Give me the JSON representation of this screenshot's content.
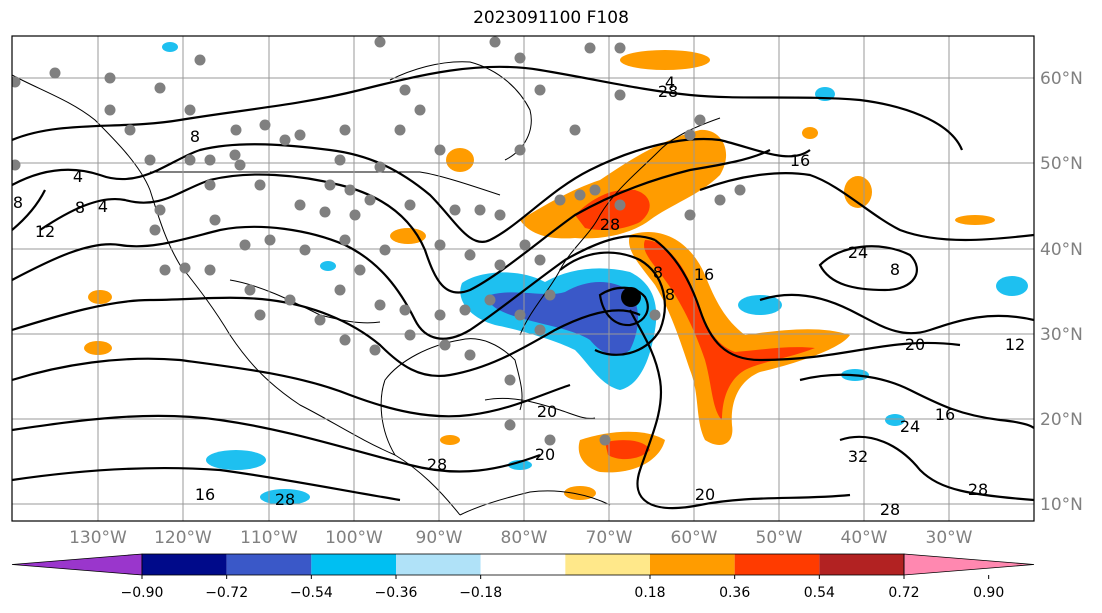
{
  "title": "2023091100 F108",
  "map": {
    "lon_labels": [
      "130°W",
      "120°W",
      "110°W",
      "100°W",
      "90°W",
      "80°W",
      "70°W",
      "60°W",
      "50°W",
      "40°W",
      "30°W"
    ],
    "lat_labels": [
      "60°N",
      "50°N",
      "40°N",
      "30°N",
      "20°N",
      "10°N"
    ],
    "contour_labels": [
      "8",
      "8",
      "4",
      "8",
      "12",
      "4",
      "16",
      "20",
      "24",
      "8",
      "16",
      "20",
      "16",
      "28",
      "28",
      "28",
      "12",
      "28",
      "20",
      "32",
      "24",
      "8",
      "8",
      "16",
      "28",
      "28",
      "4",
      "20"
    ],
    "colors": {
      "neg_strong": "#3a58c8",
      "neg_mid": "#1ec0f0",
      "neg_weak": "#b0e2f8",
      "pos_weak": "#ffe88a",
      "pos_mid": "#ff9c00",
      "pos_strong": "#ff3b00",
      "point": "#808080"
    }
  },
  "colorbar": {
    "tick_labels": [
      "−0.90",
      "−0.72",
      "−0.54",
      "−0.36",
      "−0.18",
      "0.18",
      "0.36",
      "0.54",
      "0.72",
      "0.90"
    ],
    "colors": [
      "#9a36cc",
      "#000a8a",
      "#3a58c8",
      "#00bff2",
      "#b0e2f8",
      "#ffffff",
      "#ffe88a",
      "#ff9c00",
      "#ff3b00",
      "#b22222",
      "#ff88b0"
    ]
  }
}
